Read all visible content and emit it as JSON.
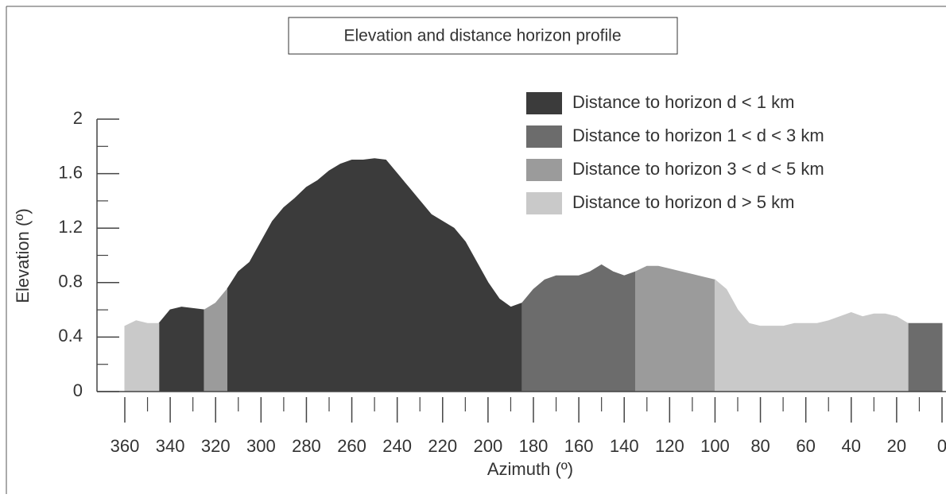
{
  "chart_data": {
    "type": "area",
    "title": "Elevation and distance horizon profile",
    "xlabel": "Azimuth (º)",
    "ylabel": "Elevation (º)",
    "x": [
      360,
      355,
      350,
      345,
      340,
      335,
      330,
      325,
      320,
      315,
      310,
      305,
      300,
      295,
      290,
      285,
      280,
      275,
      270,
      265,
      260,
      255,
      250,
      245,
      240,
      235,
      230,
      225,
      220,
      215,
      210,
      205,
      200,
      195,
      190,
      185,
      180,
      175,
      170,
      165,
      160,
      155,
      150,
      145,
      140,
      135,
      130,
      125,
      120,
      115,
      110,
      105,
      100,
      95,
      90,
      85,
      80,
      75,
      70,
      65,
      60,
      55,
      50,
      45,
      40,
      35,
      30,
      25,
      20,
      15,
      10,
      5,
      0
    ],
    "series": [
      {
        "name": "Distance to horizon d < 1 km",
        "color": "#3b3b3b",
        "values": [
          null,
          null,
          null,
          0.5,
          0.6,
          0.62,
          0.61,
          0.6,
          null,
          0.75,
          0.88,
          0.95,
          1.1,
          1.25,
          1.35,
          1.42,
          1.5,
          1.55,
          1.62,
          1.67,
          1.7,
          1.7,
          1.71,
          1.7,
          1.6,
          1.5,
          1.4,
          1.3,
          1.25,
          1.2,
          1.1,
          0.95,
          0.8,
          0.68,
          0.62,
          0.65,
          null,
          null,
          null,
          null,
          null,
          null,
          null,
          null,
          null,
          null,
          null,
          null,
          null,
          null,
          null,
          null,
          null,
          null,
          null,
          null,
          null,
          null,
          null,
          null,
          null,
          null,
          null,
          null,
          null,
          null,
          null,
          null,
          null,
          null,
          null,
          null,
          null
        ]
      },
      {
        "name": "Distance to horizon 1 < d < 3 km",
        "color": "#6c6c6c",
        "values": [
          null,
          null,
          null,
          null,
          null,
          null,
          null,
          null,
          null,
          null,
          null,
          null,
          null,
          null,
          null,
          null,
          null,
          null,
          null,
          null,
          null,
          null,
          null,
          null,
          null,
          null,
          null,
          null,
          null,
          null,
          null,
          null,
          null,
          null,
          null,
          0.65,
          0.75,
          0.82,
          0.85,
          0.85,
          0.85,
          0.88,
          0.93,
          0.88,
          0.85,
          0.88,
          null,
          null,
          null,
          null,
          null,
          null,
          null,
          null,
          null,
          null,
          null,
          null,
          null,
          null,
          null,
          null,
          null,
          null,
          null,
          null,
          null,
          null,
          null,
          0.5,
          0.5,
          0.5,
          0.5
        ]
      },
      {
        "name": "Distance to horizon 3 < d < 5 km",
        "color": "#9b9b9b",
        "values": [
          null,
          null,
          null,
          null,
          null,
          null,
          null,
          0.6,
          0.65,
          0.75,
          null,
          null,
          null,
          null,
          null,
          null,
          null,
          null,
          null,
          null,
          null,
          null,
          null,
          null,
          null,
          null,
          null,
          null,
          null,
          null,
          null,
          null,
          null,
          null,
          null,
          null,
          null,
          null,
          null,
          null,
          null,
          null,
          null,
          null,
          null,
          0.88,
          0.92,
          0.92,
          0.9,
          0.88,
          0.86,
          0.84,
          0.82,
          null,
          null,
          null,
          null,
          null,
          null,
          null,
          null,
          null,
          null,
          null,
          null,
          null,
          null,
          null,
          null,
          null,
          null,
          null,
          null
        ]
      },
      {
        "name": "Distance to horizon d > 5 km",
        "color": "#c9c9c9",
        "values": [
          0.48,
          0.52,
          0.5,
          0.5,
          null,
          null,
          null,
          null,
          null,
          null,
          null,
          null,
          null,
          null,
          null,
          null,
          null,
          null,
          null,
          null,
          null,
          null,
          null,
          null,
          null,
          null,
          null,
          null,
          null,
          null,
          null,
          null,
          null,
          null,
          null,
          null,
          null,
          null,
          null,
          null,
          null,
          null,
          null,
          null,
          null,
          null,
          null,
          null,
          null,
          null,
          null,
          null,
          0.82,
          0.75,
          0.6,
          0.5,
          0.48,
          0.48,
          0.48,
          0.5,
          0.5,
          0.5,
          0.52,
          0.55,
          0.58,
          0.55,
          0.57,
          0.57,
          0.55,
          0.5,
          null,
          null,
          null
        ]
      }
    ],
    "xlim": [
      360,
      0
    ],
    "xticks": [
      360,
      340,
      320,
      300,
      280,
      260,
      240,
      220,
      200,
      180,
      160,
      140,
      120,
      100,
      80,
      60,
      40,
      20,
      0
    ],
    "xminorticks": [
      350,
      330,
      310,
      290,
      270,
      250,
      230,
      210,
      190,
      170,
      150,
      130,
      110,
      90,
      70,
      50,
      30,
      10
    ],
    "ylim": [
      0,
      2
    ],
    "yticks": [
      0,
      0.4,
      0.8,
      1.2,
      1.6,
      2
    ],
    "yminorticks": [
      0.2,
      0.6,
      1,
      1.4,
      1.8
    ],
    "legend": "top-right"
  }
}
